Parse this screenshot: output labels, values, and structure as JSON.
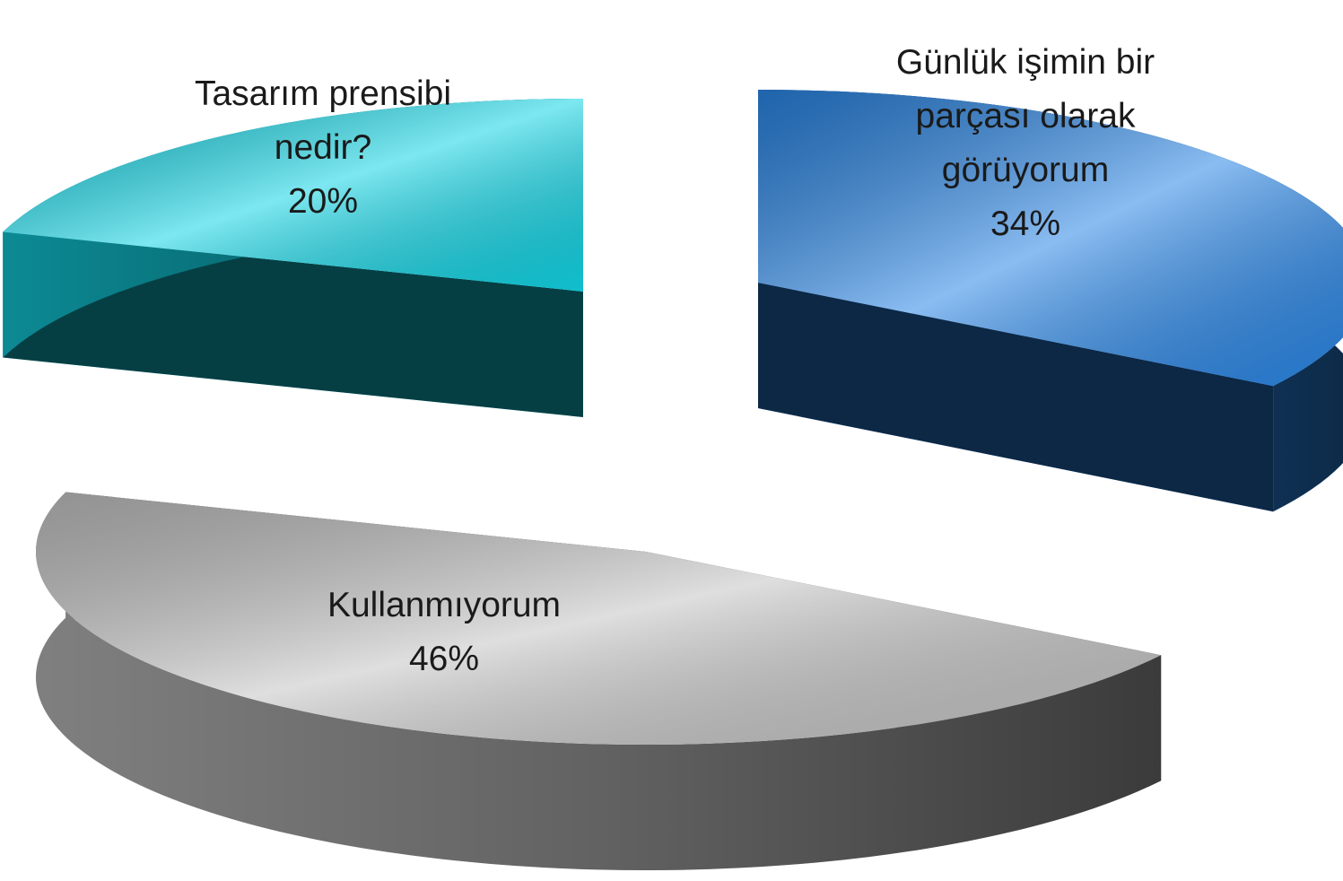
{
  "chart_data": {
    "type": "pie3d",
    "categories": [
      "Günlük işimin bir parçası olarak görüyorum",
      "Kullanmıyorum",
      "Tasarım prensibi nedir?"
    ],
    "values": [
      34,
      46,
      20
    ],
    "value_labels": [
      "34%",
      "46%",
      "20%"
    ],
    "colors": [
      "#2a86e6",
      "#c4c4c4",
      "#12d4e4"
    ]
  }
}
